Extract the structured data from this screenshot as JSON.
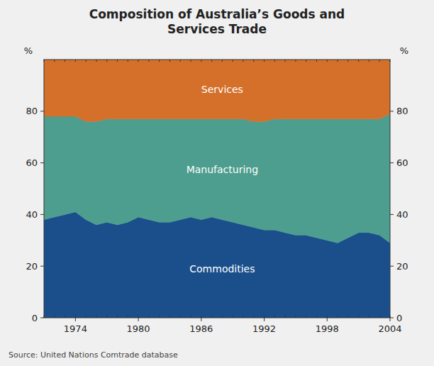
{
  "chart_data": {
    "type": "area",
    "stacked": true,
    "title": "Composition of Australia’s Goods and\nServices Trade",
    "ylabel": "%",
    "y2label": "%",
    "annotations": [
      "Source: United Nations Comtrade database"
    ],
    "x": [
      1971,
      1972,
      1973,
      1974,
      1975,
      1976,
      1977,
      1978,
      1979,
      1980,
      1981,
      1982,
      1983,
      1984,
      1985,
      1986,
      1987,
      1988,
      1989,
      1990,
      1991,
      1992,
      1993,
      1994,
      1995,
      1996,
      1997,
      1998,
      1999,
      2000,
      2001,
      2002,
      2003,
      2004
    ],
    "series": [
      {
        "name": "Commodities",
        "color": "#1B4F8C",
        "values": [
          38,
          39,
          40,
          41,
          38,
          36,
          37,
          36,
          37,
          39,
          38,
          37,
          37,
          38,
          39,
          38,
          39,
          38,
          37,
          36,
          35,
          34,
          34,
          33,
          32,
          32,
          31,
          30,
          29,
          31,
          33,
          33,
          32,
          29
        ]
      },
      {
        "name": "Manufacturing",
        "color": "#4D9E8E",
        "values": [
          40,
          39,
          38,
          37,
          38,
          40,
          40,
          41,
          40,
          38,
          39,
          40,
          40,
          39,
          38,
          39,
          38,
          39,
          40,
          41,
          41,
          42,
          43,
          44,
          45,
          45,
          46,
          47,
          48,
          46,
          44,
          44,
          45,
          50
        ]
      },
      {
        "name": "Services",
        "color": "#D4702A",
        "values": [
          22,
          22,
          22,
          22,
          24,
          24,
          23,
          23,
          23,
          23,
          23,
          23,
          23,
          23,
          23,
          23,
          23,
          23,
          23,
          23,
          24,
          24,
          23,
          23,
          23,
          23,
          23,
          23,
          23,
          23,
          23,
          23,
          23,
          21
        ]
      }
    ],
    "xlim": [
      1971,
      2004
    ],
    "xticks": [
      1974,
      1980,
      1986,
      1992,
      1998,
      2004
    ],
    "ylim": [
      0,
      100
    ],
    "yticks": [
      0,
      20,
      40,
      60,
      80
    ],
    "y2lim": [
      0,
      100
    ],
    "y2ticks": [
      0,
      20,
      40,
      60,
      80
    ],
    "grid": false
  }
}
